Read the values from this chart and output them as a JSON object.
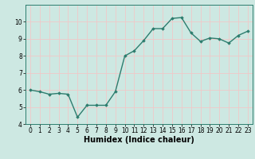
{
  "x": [
    0,
    1,
    2,
    3,
    4,
    5,
    6,
    7,
    8,
    9,
    10,
    11,
    12,
    13,
    14,
    15,
    16,
    17,
    18,
    19,
    20,
    21,
    22,
    23
  ],
  "y": [
    6.0,
    5.9,
    5.75,
    5.8,
    5.75,
    4.4,
    5.1,
    5.1,
    5.1,
    5.9,
    8.0,
    8.3,
    8.9,
    9.6,
    9.6,
    10.2,
    10.25,
    9.35,
    8.85,
    9.05,
    9.0,
    8.75,
    9.2,
    9.45
  ],
  "xlabel": "Humidex (Indice chaleur)",
  "ylim": [
    4,
    11
  ],
  "xlim": [
    -0.5,
    23.5
  ],
  "yticks": [
    4,
    5,
    6,
    7,
    8,
    9,
    10
  ],
  "xticks": [
    0,
    1,
    2,
    3,
    4,
    5,
    6,
    7,
    8,
    9,
    10,
    11,
    12,
    13,
    14,
    15,
    16,
    17,
    18,
    19,
    20,
    21,
    22,
    23
  ],
  "line_color": "#2d7d6e",
  "marker": "D",
  "marker_size": 1.8,
  "bg_color": "#cde8e2",
  "grid_color": "#f0c8c8",
  "axis_bg": "#cde8e2",
  "xlabel_fontsize": 7,
  "tick_fontsize": 5.5,
  "linewidth": 1.0
}
